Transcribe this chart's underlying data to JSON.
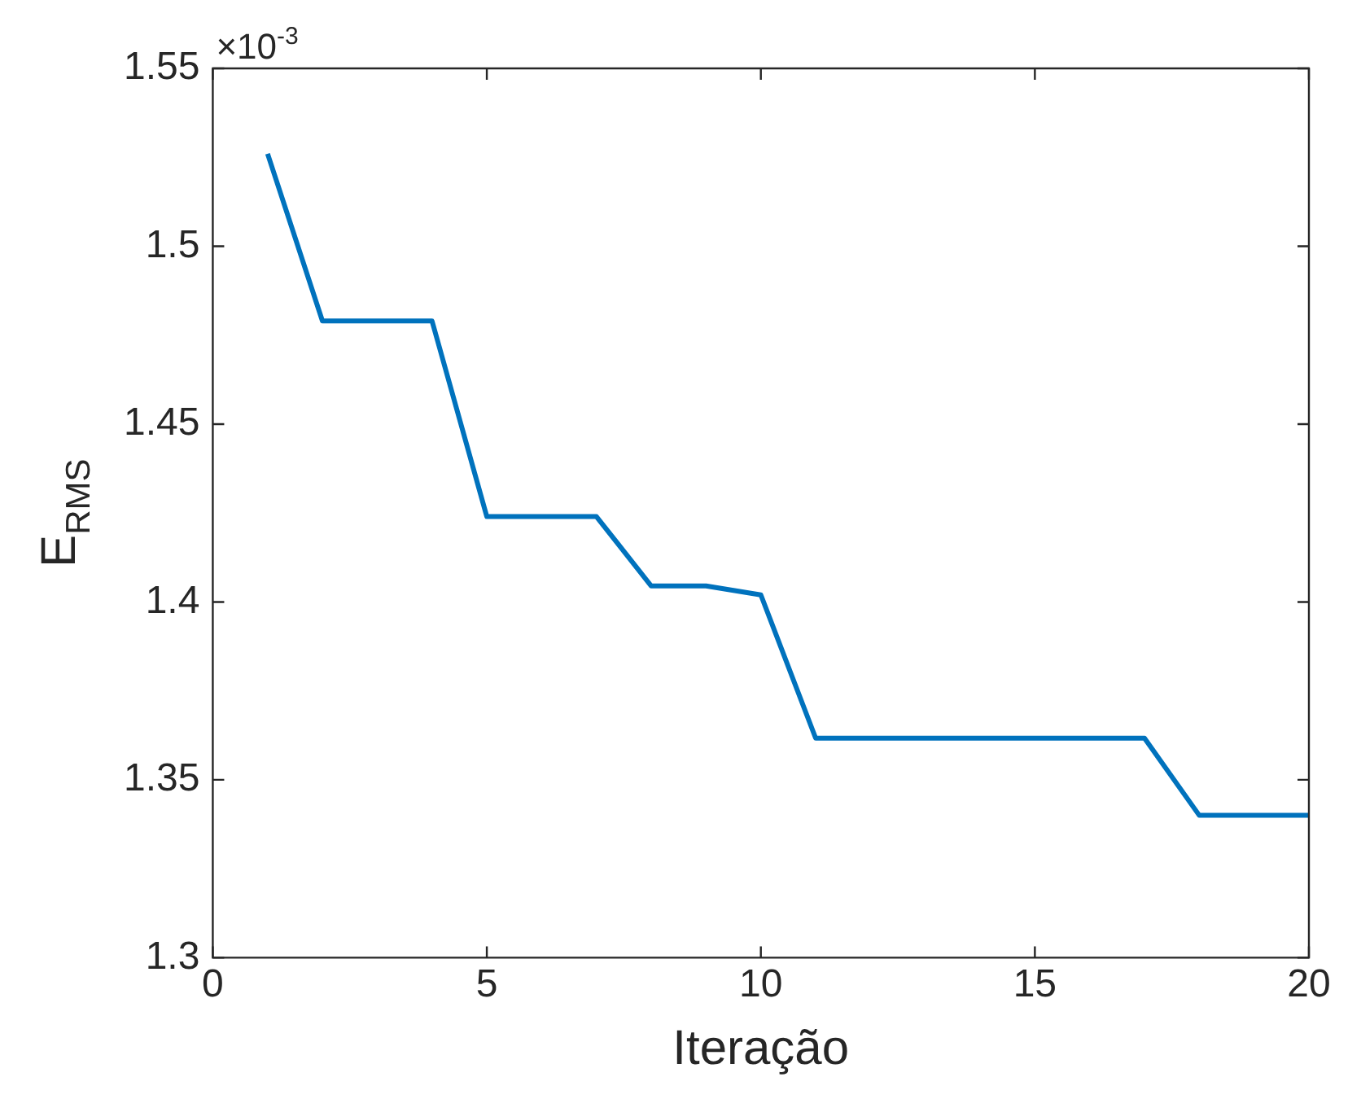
{
  "chart_data": {
    "type": "line",
    "xlabel": "Iteração",
    "ylabel": "E$_{RMS}$",
    "annotations": [
      "×10$^{-3}$"
    ],
    "x": [
      1,
      2,
      3,
      4,
      5,
      6,
      7,
      8,
      9,
      10,
      11,
      12,
      13,
      14,
      15,
      16,
      17,
      18,
      19,
      20
    ],
    "series": [
      {
        "color": "#0072bd",
        "values": [
          1.526,
          1.479,
          1.479,
          1.479,
          1.424,
          1.424,
          1.424,
          1.4045,
          1.4045,
          1.402,
          1.3617,
          1.3617,
          1.3617,
          1.3617,
          1.3617,
          1.3617,
          1.3617,
          1.34,
          1.34,
          1.34
        ]
      }
    ],
    "xlim": [
      0,
      20
    ],
    "xticks": [
      0,
      5,
      10,
      15,
      20
    ],
    "ylim": [
      1.3,
      1.55
    ],
    "yticks": [
      1.3,
      1.35,
      1.4,
      1.45,
      1.5,
      1.55
    ],
    "grid": false,
    "legend": false,
    "marker": "none",
    "line_style": "solid"
  }
}
